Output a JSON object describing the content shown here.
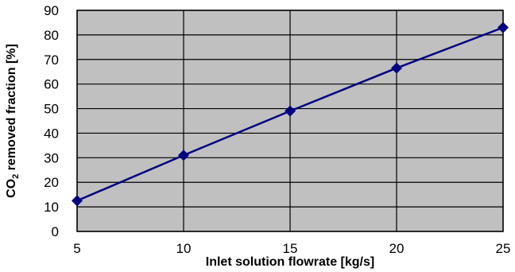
{
  "chart_data": {
    "type": "line",
    "title": "",
    "xlabel": "Inlet solution flowrate [kg/s]",
    "ylabel_main": "CO",
    "ylabel_sub": "2",
    "ylabel_rest": " removed fraction [%]",
    "x": [
      5,
      10,
      15,
      20,
      25
    ],
    "series": [
      {
        "values": [
          12.5,
          31,
          49,
          66.5,
          83
        ]
      }
    ],
    "xlim": [
      5,
      25
    ],
    "ylim": [
      0,
      90
    ],
    "xticks": [
      "5",
      "10",
      "15",
      "20",
      "25"
    ],
    "yticks": [
      "0",
      "10",
      "20",
      "30",
      "40",
      "50",
      "60",
      "70",
      "80",
      "90"
    ],
    "grid": true,
    "legend": "none",
    "colors": {
      "plot_background": "#c0c0c0",
      "line": "#000080",
      "marker": "#000080",
      "grid": "#000000"
    }
  }
}
